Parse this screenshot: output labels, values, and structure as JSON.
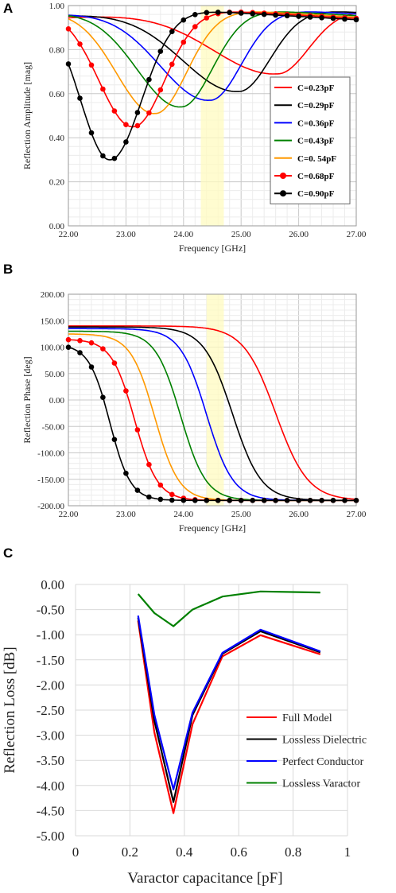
{
  "chart_data": [
    {
      "panel": "A",
      "type": "line",
      "xlabel": "Frequency [GHz]",
      "ylabel": "Reflection Amplitude [mag]",
      "xlim": [
        22.0,
        27.0
      ],
      "ylim": [
        0.0,
        1.0
      ],
      "x_ticks": [
        "22.00",
        "23.00",
        "24.00",
        "25.00",
        "26.00",
        "27.00"
      ],
      "y_ticks": [
        "0.00",
        "0.20",
        "0.40",
        "0.60",
        "0.80",
        "1.00"
      ],
      "grid": true,
      "legend_position": "right",
      "highlight_band": [
        24.3,
        24.7
      ],
      "series": [
        {
          "name": "C=0.23pF",
          "color": "#ff0000",
          "markers": false,
          "f0": 25.62,
          "min": 0.69
        },
        {
          "name": "C=0.29pF",
          "color": "#000000",
          "markers": false,
          "f0": 24.95,
          "min": 0.61
        },
        {
          "name": "C=0.36pF",
          "color": "#0000ff",
          "markers": false,
          "f0": 24.45,
          "min": 0.57
        },
        {
          "name": "C=0.43pF",
          "color": "#008000",
          "markers": false,
          "f0": 23.95,
          "min": 0.54
        },
        {
          "name": "C=0. 54pF",
          "color": "#ff9900",
          "markers": false,
          "f0": 23.5,
          "min": 0.51
        },
        {
          "name": "C=0.68pF",
          "color": "#ff0000",
          "markers": true,
          "f0": 23.12,
          "min": 0.45
        },
        {
          "name": "C=0.90pF",
          "color": "#000000",
          "markers": true,
          "f0": 22.72,
          "min": 0.3
        }
      ]
    },
    {
      "panel": "B",
      "type": "line",
      "xlabel": "Frequency [GHz]",
      "ylabel": "Reflection Phase [deg]",
      "xlim": [
        22.0,
        27.0
      ],
      "ylim": [
        -200.0,
        200.0
      ],
      "x_ticks": [
        "22.00",
        "23.00",
        "24.00",
        "25.00",
        "26.00",
        "27.00"
      ],
      "y_ticks": [
        "200.00",
        "150.00",
        "100.00",
        "50.00",
        "0.00",
        "-50.00",
        "-100.00",
        "-150.00",
        "-200.00"
      ],
      "grid": true,
      "highlight_band": [
        24.4,
        24.7
      ],
      "series": [
        {
          "color": "#ff0000",
          "markers": false,
          "f0": 25.6,
          "w": 0.28,
          "start": 140
        },
        {
          "color": "#000000",
          "markers": false,
          "f0": 24.85,
          "w": 0.25,
          "start": 138
        },
        {
          "color": "#0000ff",
          "markers": false,
          "f0": 24.4,
          "w": 0.23,
          "start": 135
        },
        {
          "color": "#008000",
          "markers": false,
          "f0": 23.95,
          "w": 0.22,
          "start": 130
        },
        {
          "color": "#ff9900",
          "markers": false,
          "f0": 23.5,
          "w": 0.21,
          "start": 125
        },
        {
          "color": "#ff0000",
          "markers": true,
          "f0": 23.15,
          "w": 0.2,
          "start": 115
        },
        {
          "color": "#000000",
          "markers": true,
          "f0": 22.72,
          "w": 0.18,
          "start": 105
        }
      ]
    },
    {
      "panel": "C",
      "type": "line",
      "xlabel": "Varactor capacitance [pF]",
      "ylabel": "Reflection Loss [dB]",
      "xlim": [
        0,
        1
      ],
      "ylim": [
        -5.0,
        0.0
      ],
      "x_ticks": [
        "0",
        "0.2",
        "0.4",
        "0.6",
        "0.8",
        "1"
      ],
      "y_ticks": [
        "0.00",
        "-0.50",
        "-1.00",
        "-1.50",
        "-2.00",
        "-2.50",
        "-3.00",
        "-3.50",
        "-4.00",
        "-4.50",
        "-5.00"
      ],
      "grid": true,
      "legend_position": "bottom-right",
      "x": [
        0.23,
        0.29,
        0.36,
        0.43,
        0.54,
        0.68,
        0.9
      ],
      "series": [
        {
          "name": "Full Model",
          "color": "#ff0000",
          "values": [
            -0.72,
            -2.95,
            -4.55,
            -2.78,
            -1.43,
            -1.01,
            -1.39
          ]
        },
        {
          "name": "Lossless Dielectric",
          "color": "#000000",
          "values": [
            -0.66,
            -2.72,
            -4.33,
            -2.6,
            -1.38,
            -0.93,
            -1.35
          ]
        },
        {
          "name": "Perfect Conductor",
          "color": "#0000ff",
          "values": [
            -0.62,
            -2.6,
            -4.08,
            -2.55,
            -1.36,
            -0.9,
            -1.33
          ]
        },
        {
          "name": "Lossless Varactor",
          "color": "#008000",
          "values": [
            -0.19,
            -0.57,
            -0.83,
            -0.5,
            -0.24,
            -0.14,
            -0.16
          ]
        }
      ]
    }
  ]
}
